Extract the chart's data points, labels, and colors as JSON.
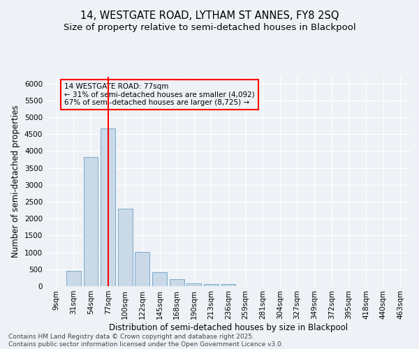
{
  "title_line1": "14, WESTGATE ROAD, LYTHAM ST ANNES, FY8 2SQ",
  "title_line2": "Size of property relative to semi-detached houses in Blackpool",
  "xlabel": "Distribution of semi-detached houses by size in Blackpool",
  "ylabel": "Number of semi-detached properties",
  "categories": [
    "9sqm",
    "31sqm",
    "54sqm",
    "77sqm",
    "100sqm",
    "122sqm",
    "145sqm",
    "168sqm",
    "190sqm",
    "213sqm",
    "236sqm",
    "259sqm",
    "281sqm",
    "304sqm",
    "327sqm",
    "349sqm",
    "372sqm",
    "395sqm",
    "418sqm",
    "440sqm",
    "463sqm"
  ],
  "values": [
    0,
    450,
    3820,
    4680,
    2300,
    1010,
    420,
    200,
    80,
    60,
    55,
    0,
    0,
    0,
    0,
    0,
    0,
    0,
    0,
    0,
    0
  ],
  "bar_color": "#c9d9e8",
  "bar_edge_color": "#7aaac8",
  "highlight_x": "77sqm",
  "highlight_line_color": "red",
  "annotation_text": "14 WESTGATE ROAD: 77sqm\n← 31% of semi-detached houses are smaller (4,092)\n67% of semi-detached houses are larger (8,725) →",
  "annotation_box_color": "red",
  "ylim": [
    0,
    6200
  ],
  "yticks": [
    0,
    500,
    1000,
    1500,
    2000,
    2500,
    3000,
    3500,
    4000,
    4500,
    5000,
    5500,
    6000
  ],
  "footnote": "Contains HM Land Registry data © Crown copyright and database right 2025.\nContains public sector information licensed under the Open Government Licence v3.0.",
  "bg_color": "#eef2f7",
  "grid_color": "#ffffff",
  "title_fontsize": 10.5,
  "subtitle_fontsize": 9.5,
  "axis_label_fontsize": 8.5,
  "tick_fontsize": 7.5,
  "annot_fontsize": 7.5,
  "footnote_fontsize": 6.5
}
